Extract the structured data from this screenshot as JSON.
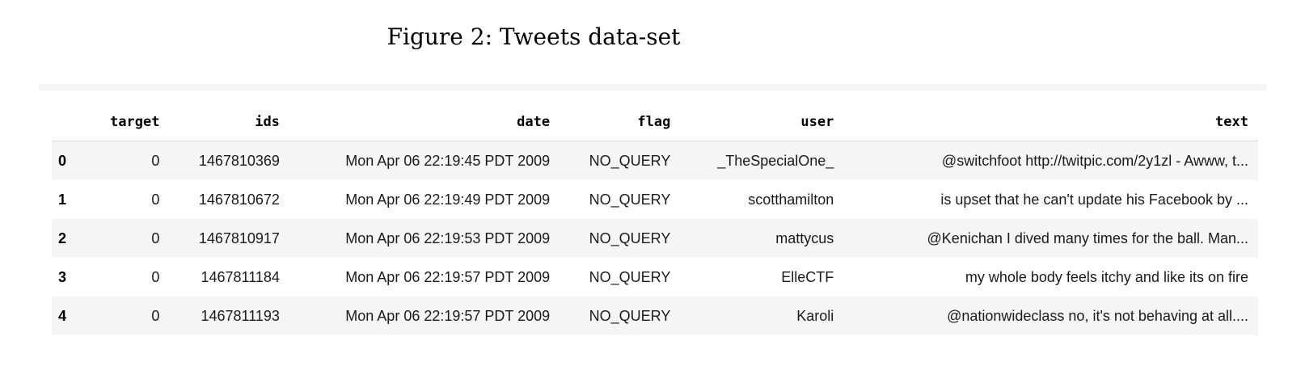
{
  "caption": "Figure 2: Tweets data-set",
  "table": {
    "columns": [
      "target",
      "ids",
      "date",
      "flag",
      "user",
      "text"
    ],
    "rows": [
      {
        "index": "0",
        "target": "0",
        "ids": "1467810369",
        "date": "Mon Apr 06 22:19:45 PDT 2009",
        "flag": "NO_QUERY",
        "user": "_TheSpecialOne_",
        "text": "@switchfoot http://twitpic.com/2y1zl - Awww, t..."
      },
      {
        "index": "1",
        "target": "0",
        "ids": "1467810672",
        "date": "Mon Apr 06 22:19:49 PDT 2009",
        "flag": "NO_QUERY",
        "user": "scotthamilton",
        "text": "is upset that he can't update his Facebook by ..."
      },
      {
        "index": "2",
        "target": "0",
        "ids": "1467810917",
        "date": "Mon Apr 06 22:19:53 PDT 2009",
        "flag": "NO_QUERY",
        "user": "mattycus",
        "text": "@Kenichan I dived many times for the ball. Man..."
      },
      {
        "index": "3",
        "target": "0",
        "ids": "1467811184",
        "date": "Mon Apr 06 22:19:57 PDT 2009",
        "flag": "NO_QUERY",
        "user": "ElleCTF",
        "text": "my whole body feels itchy and like its on fire"
      },
      {
        "index": "4",
        "target": "0",
        "ids": "1467811193",
        "date": "Mon Apr 06 22:19:57 PDT 2009",
        "flag": "NO_QUERY",
        "user": "Karoli",
        "text": "@nationwideclass no, it's not behaving at all...."
      }
    ]
  }
}
